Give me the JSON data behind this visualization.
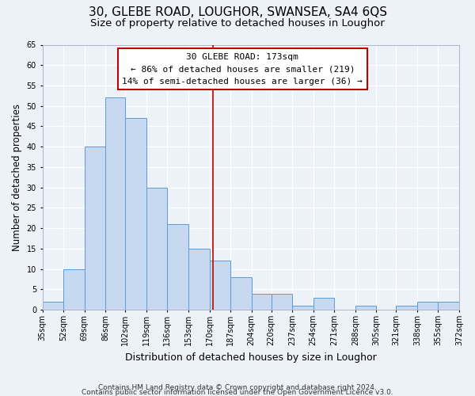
{
  "title": "30, GLEBE ROAD, LOUGHOR, SWANSEA, SA4 6QS",
  "subtitle": "Size of property relative to detached houses in Loughor",
  "xlabel": "Distribution of detached houses by size in Loughor",
  "ylabel": "Number of detached properties",
  "bar_edges": [
    35,
    52,
    69,
    86,
    102,
    119,
    136,
    153,
    170,
    187,
    204,
    220,
    237,
    254,
    271,
    288,
    305,
    321,
    338,
    355,
    372
  ],
  "bar_heights": [
    2,
    10,
    40,
    52,
    47,
    30,
    21,
    15,
    12,
    8,
    4,
    4,
    1,
    3,
    0,
    1,
    0,
    1,
    2,
    2
  ],
  "bar_color": "#c6d9f0",
  "bar_edge_color": "#5b9bd5",
  "property_line_x": 173,
  "property_line_color": "#c00000",
  "annotation_line1": "30 GLEBE ROAD: 173sqm",
  "annotation_line2": "← 86% of detached houses are smaller (219)",
  "annotation_line3": "14% of semi-detached houses are larger (36) →",
  "ylim": [
    0,
    65
  ],
  "yticks": [
    0,
    5,
    10,
    15,
    20,
    25,
    30,
    35,
    40,
    45,
    50,
    55,
    60,
    65
  ],
  "tick_labels": [
    "35sqm",
    "52sqm",
    "69sqm",
    "86sqm",
    "102sqm",
    "119sqm",
    "136sqm",
    "153sqm",
    "170sqm",
    "187sqm",
    "204sqm",
    "220sqm",
    "237sqm",
    "254sqm",
    "271sqm",
    "288sqm",
    "305sqm",
    "321sqm",
    "338sqm",
    "355sqm",
    "372sqm"
  ],
  "footer_line1": "Contains HM Land Registry data © Crown copyright and database right 2024.",
  "footer_line2": "Contains public sector information licensed under the Open Government Licence v3.0.",
  "bg_color": "#edf2f9",
  "grid_color": "#ffffff",
  "title_fontsize": 11,
  "subtitle_fontsize": 9.5,
  "axis_label_fontsize": 8.5,
  "tick_fontsize": 7,
  "annotation_fontsize": 8,
  "footer_fontsize": 6.5
}
